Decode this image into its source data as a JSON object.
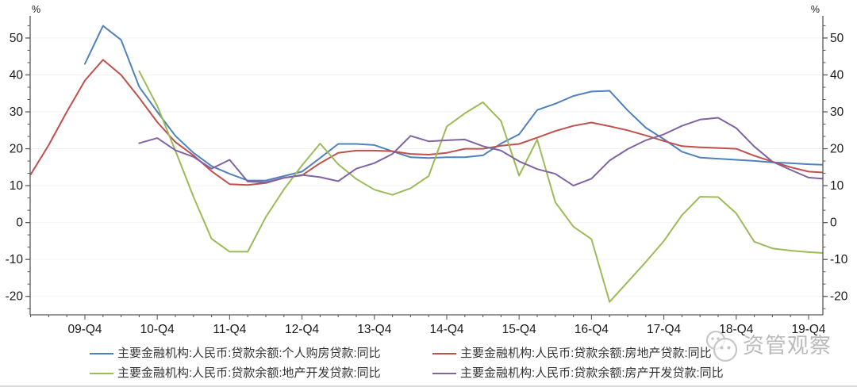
{
  "axes": {
    "unit_left": "%",
    "unit_right": "%"
  },
  "watermark": {
    "text": "资管观察",
    "icon": "wechat-logo-icon",
    "color": "#bbbbbb"
  },
  "chart_data": {
    "type": "line",
    "title": "",
    "xlabel": "",
    "ylabel": "%",
    "ylim": [
      -25,
      56
    ],
    "yticks": [
      -20,
      -10,
      0,
      10,
      20,
      30,
      40,
      50
    ],
    "grid": "horizontal-light",
    "gridline_color": "#f2f2f2",
    "axis_color": "#595959",
    "tick_label_color": "#1a1a1a",
    "legend_position": "bottom",
    "xticklabels": [
      "09-Q4",
      "10-Q4",
      "11-Q4",
      "12-Q4",
      "13-Q4",
      "14-Q4",
      "15-Q4",
      "16-Q4",
      "17-Q4",
      "18-Q4",
      "19-Q4"
    ],
    "categories": [
      "09-Q1",
      "09-Q2",
      "09-Q3",
      "09-Q4",
      "10-Q1",
      "10-Q2",
      "10-Q3",
      "10-Q4",
      "11-Q1",
      "11-Q2",
      "11-Q3",
      "11-Q4",
      "12-Q1",
      "12-Q2",
      "12-Q3",
      "12-Q4",
      "13-Q1",
      "13-Q2",
      "13-Q3",
      "13-Q4",
      "14-Q1",
      "14-Q2",
      "14-Q3",
      "14-Q4",
      "15-Q1",
      "15-Q2",
      "15-Q3",
      "15-Q4",
      "16-Q1",
      "16-Q2",
      "16-Q3",
      "16-Q4",
      "17-Q1",
      "17-Q2",
      "17-Q3",
      "17-Q4",
      "18-Q1",
      "18-Q2",
      "18-Q3",
      "18-Q4",
      "19-Q1",
      "19-Q2",
      "19-Q3",
      "19-Q4",
      "20-Q1"
    ],
    "series": [
      {
        "name": "主要金融机构:人民币:贷款余额:个人购房贷款:同比",
        "color": "#4F81BD",
        "values": [
          null,
          null,
          null,
          43.0,
          53.3,
          49.5,
          36.8,
          30.0,
          23.5,
          18.9,
          15.3,
          13.2,
          11.4,
          11.4,
          12.6,
          13.8,
          17.5,
          21.3,
          21.3,
          21.0,
          19.3,
          17.7,
          17.5,
          17.7,
          17.7,
          18.2,
          21.4,
          23.9,
          30.5,
          32.2,
          34.3,
          35.5,
          35.7,
          30.4,
          25.7,
          22.6,
          19.2,
          17.6,
          17.3,
          17.0,
          16.7,
          16.3,
          16.1,
          15.8,
          15.6
        ]
      },
      {
        "name": "主要金融机构:人民币:贷款余额:房地产贷款:同比",
        "color": "#C0504D",
        "values": [
          13.0,
          21.0,
          30.0,
          38.5,
          44.1,
          40.0,
          33.8,
          27.2,
          21.8,
          18.2,
          13.9,
          10.4,
          10.2,
          10.7,
          12.1,
          12.8,
          16.1,
          18.9,
          19.5,
          19.5,
          19.3,
          18.6,
          18.4,
          18.9,
          20.0,
          20.0,
          20.8,
          21.3,
          23.0,
          24.8,
          26.2,
          27.1,
          26.1,
          25.0,
          23.6,
          22.1,
          20.7,
          20.4,
          20.2,
          20.0,
          18.1,
          16.5,
          15.0,
          13.8,
          13.5
        ]
      },
      {
        "name": "主要金融机构:人民币:贷款余额:地产开发贷款:同比",
        "color": "#9BBB59",
        "values": [
          null,
          null,
          null,
          null,
          null,
          null,
          41.0,
          31.6,
          19.5,
          7.0,
          -4.4,
          -7.9,
          -7.9,
          1.5,
          9.0,
          15.5,
          21.4,
          15.8,
          11.8,
          8.9,
          7.5,
          9.3,
          12.6,
          26.0,
          29.6,
          32.6,
          27.5,
          12.7,
          22.5,
          5.5,
          -1.1,
          -4.5,
          -21.5,
          -16.1,
          -10.7,
          -5.0,
          2.0,
          7.0,
          6.9,
          2.5,
          -5.2,
          -7.0,
          -7.6,
          -8.0,
          -8.3
        ]
      },
      {
        "name": "主要金融机构:人民币:贷款余额:房产开发贷款:同比",
        "color": "#8064A2",
        "values": [
          null,
          null,
          null,
          null,
          null,
          null,
          21.5,
          22.9,
          19.6,
          17.8,
          14.6,
          17.0,
          11.1,
          10.9,
          12.1,
          12.9,
          12.3,
          11.2,
          14.6,
          16.1,
          18.6,
          23.5,
          22.0,
          22.3,
          22.5,
          20.7,
          19.5,
          16.6,
          14.5,
          13.2,
          10.0,
          11.9,
          16.8,
          19.9,
          22.3,
          23.9,
          26.2,
          27.9,
          28.4,
          25.6,
          20.6,
          16.5,
          14.3,
          12.2,
          11.8
        ]
      }
    ]
  }
}
